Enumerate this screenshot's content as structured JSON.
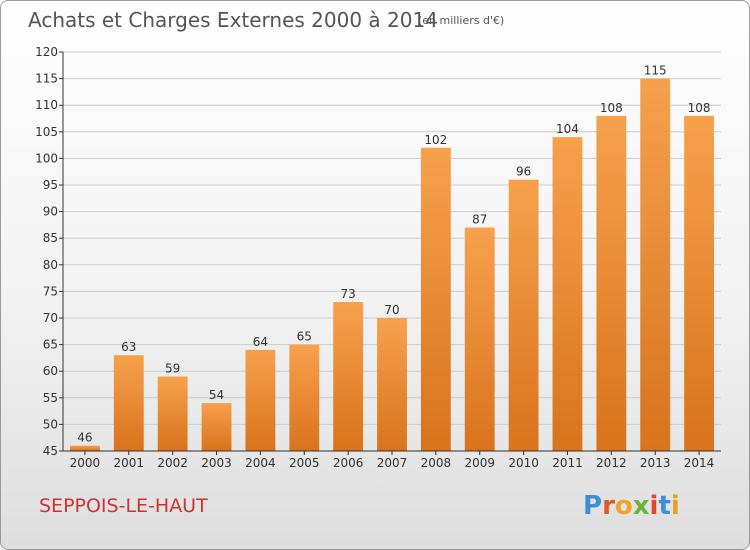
{
  "title": "Achats et Charges Externes 2000 à 2014",
  "subtitle": "(en milliers d'€)",
  "location": "SEPPOIS-LE-HAUT",
  "brand": {
    "text": "Proxiti",
    "letter_colors": [
      "#3b8fd6",
      "#e2572a",
      "#f0a22a",
      "#6cb33f",
      "#e8432d",
      "#3b8fd6",
      "#e8a020"
    ]
  },
  "colors": {
    "bar_top": "#f7a14d",
    "bar_bottom": "#d9731c",
    "axis": "#333333",
    "grid": "#cccccc"
  },
  "chart_data": {
    "type": "bar",
    "categories": [
      "2000",
      "2001",
      "2002",
      "2003",
      "2004",
      "2005",
      "2006",
      "2007",
      "2008",
      "2009",
      "2010",
      "2011",
      "2012",
      "2013",
      "2014"
    ],
    "values": [
      46,
      63,
      59,
      54,
      64,
      65,
      73,
      70,
      102,
      87,
      96,
      104,
      108,
      115,
      108
    ],
    "title": "Achats et Charges Externes 2000 à 2014",
    "ylim": [
      45,
      120
    ],
    "yticks": [
      45,
      50,
      55,
      60,
      65,
      70,
      75,
      80,
      85,
      90,
      95,
      100,
      105,
      110,
      115,
      120
    ],
    "grid": true,
    "legend": "none"
  }
}
